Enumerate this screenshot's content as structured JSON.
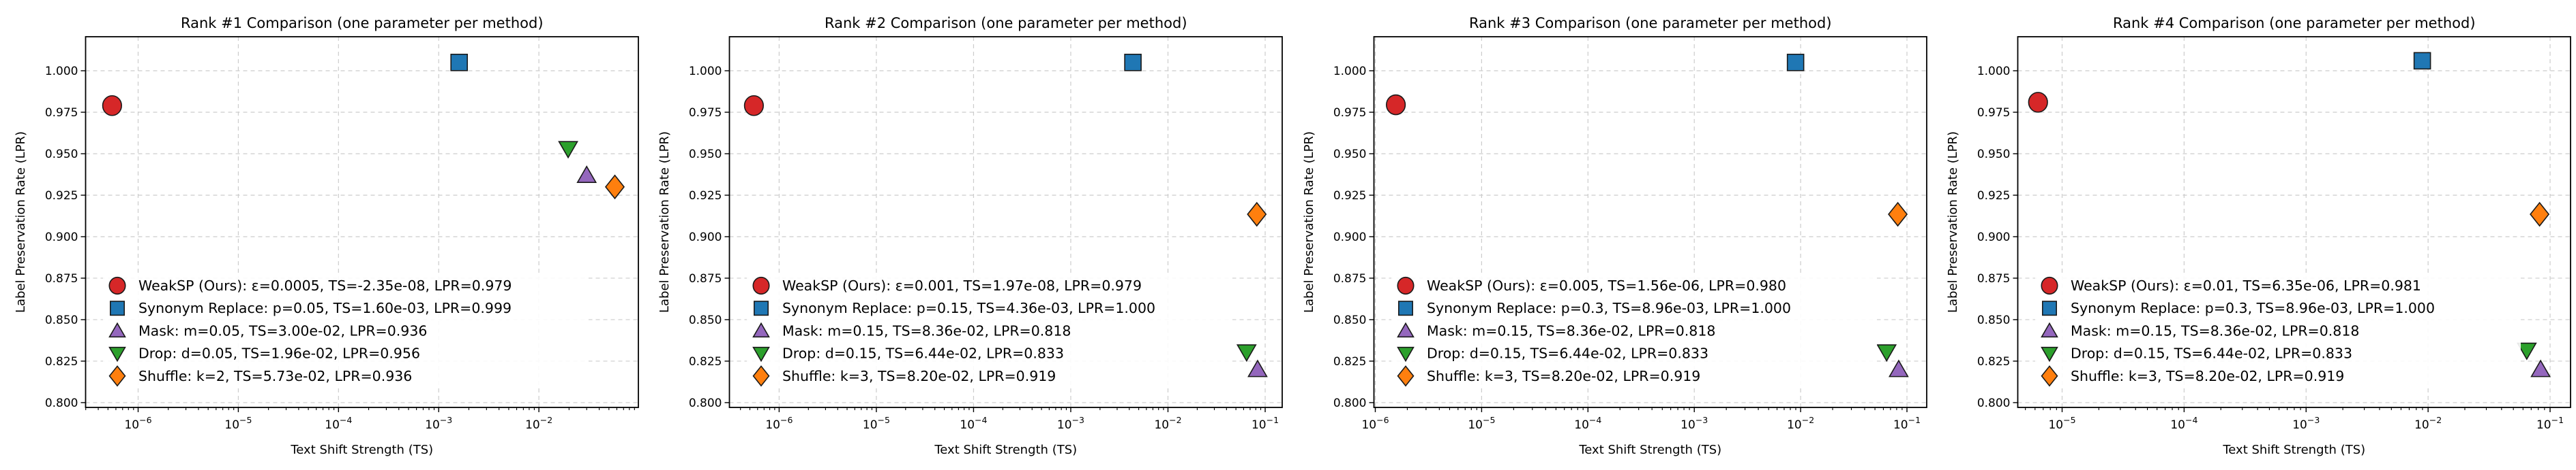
{
  "figure": {
    "background": "#ffffff",
    "grid_color": "#cccccc",
    "spine_color": "#000000",
    "marker_edge_color": "#1a1a1a",
    "legend_bg": "#ffffff"
  },
  "chart_data": [
    {
      "type": "scatter",
      "title": "Rank #1 Comparison (one parameter per method)",
      "xlabel": "Text Shift Strength (TS)",
      "ylabel": "Label Preservation Rate (LPR)",
      "xscale": "log",
      "xlim": [
        2.99e-07,
        0.0984
      ],
      "xtick_exponents": [
        -6,
        -5,
        -4,
        -3,
        -2
      ],
      "ylim": [
        0.7971,
        1.0205
      ],
      "yticks": [
        0.8,
        0.825,
        0.85,
        0.875,
        0.9,
        0.925,
        0.95,
        0.975,
        1.0
      ],
      "grid": true,
      "legend_position": "lower-left",
      "series": [
        {
          "name": "WeakSP (Ours)",
          "slug": "weaksp",
          "marker": "circle",
          "color": "#d62728",
          "legend_label": "WeakSP (Ours): ε=0.0005, TS=-2.35e-08, LPR=0.979",
          "param": "ε=0.0005",
          "ts": "-2.35e-08",
          "lpr": 0.979,
          "plot": {
            "x": 5.5e-07,
            "y": 0.979
          }
        },
        {
          "name": "Synonym Replace",
          "slug": "synonym-replace",
          "marker": "square",
          "color": "#1f77b4",
          "legend_label": "Synonym Replace: p=0.05, TS=1.60e-03, LPR=0.999",
          "param": "p=0.05",
          "ts": "1.60e-03",
          "lpr": 0.999,
          "plot": {
            "x": 0.0016,
            "y": 1.005
          }
        },
        {
          "name": "Mask",
          "slug": "mask",
          "marker": "triangle-up",
          "color": "#9467bd",
          "legend_label": "Mask: m=0.05, TS=3.00e-02, LPR=0.936",
          "param": "m=0.05",
          "ts": "3.00e-02",
          "lpr": 0.936,
          "plot": {
            "x": 0.03,
            "y": 0.937
          }
        },
        {
          "name": "Drop",
          "slug": "drop",
          "marker": "triangle-down",
          "color": "#2ca02c",
          "legend_label": "Drop: d=0.05, TS=1.96e-02, LPR=0.956",
          "param": "d=0.05",
          "ts": "1.96e-02",
          "lpr": 0.956,
          "plot": {
            "x": 0.0196,
            "y": 0.953
          }
        },
        {
          "name": "Shuffle",
          "slug": "shuffle",
          "marker": "diamond",
          "color": "#ff7f0e",
          "legend_label": "Shuffle: k=2, TS=5.73e-02, LPR=0.936",
          "param": "k=2",
          "ts": "5.73e-02",
          "lpr": 0.936,
          "plot": {
            "x": 0.0573,
            "y": 0.93
          }
        }
      ]
    },
    {
      "type": "scatter",
      "title": "Rank #2 Comparison (one parameter per method)",
      "xlabel": "Text Shift Strength (TS)",
      "ylabel": "Label Preservation Rate (LPR)",
      "xscale": "log",
      "xlim": [
        3.08e-07,
        0.1497
      ],
      "xtick_exponents": [
        -6,
        -5,
        -4,
        -3,
        -2,
        -1
      ],
      "ylim": [
        0.7971,
        1.0205
      ],
      "yticks": [
        0.8,
        0.825,
        0.85,
        0.875,
        0.9,
        0.925,
        0.95,
        0.975,
        1.0
      ],
      "grid": true,
      "legend_position": "lower-left",
      "series": [
        {
          "name": "WeakSP (Ours)",
          "slug": "weaksp",
          "marker": "circle",
          "color": "#d62728",
          "legend_label": "WeakSP (Ours): ε=0.001, TS=1.97e-08, LPR=0.979",
          "param": "ε=0.001",
          "ts": "1.97e-08",
          "lpr": 0.979,
          "plot": {
            "x": 5.5e-07,
            "y": 0.979
          }
        },
        {
          "name": "Synonym Replace",
          "slug": "synonym-replace",
          "marker": "square",
          "color": "#1f77b4",
          "legend_label": "Synonym Replace: p=0.15, TS=4.36e-03, LPR=1.000",
          "param": "p=0.15",
          "ts": "4.36e-03",
          "lpr": 1.0,
          "plot": {
            "x": 0.00436,
            "y": 1.005
          }
        },
        {
          "name": "Mask",
          "slug": "mask",
          "marker": "triangle-up",
          "color": "#9467bd",
          "legend_label": "Mask: m=0.15, TS=8.36e-02, LPR=0.818",
          "param": "m=0.15",
          "ts": "8.36e-02",
          "lpr": 0.818,
          "plot": {
            "x": 0.0836,
            "y": 0.82
          }
        },
        {
          "name": "Drop",
          "slug": "drop",
          "marker": "triangle-down",
          "color": "#2ca02c",
          "legend_label": "Drop: d=0.15, TS=6.44e-02, LPR=0.833",
          "param": "d=0.15",
          "ts": "6.44e-02",
          "lpr": 0.833,
          "plot": {
            "x": 0.0644,
            "y": 0.8305
          }
        },
        {
          "name": "Shuffle",
          "slug": "shuffle",
          "marker": "diamond",
          "color": "#ff7f0e",
          "legend_label": "Shuffle: k=3, TS=8.20e-02, LPR=0.919",
          "param": "k=3",
          "ts": "8.20e-02",
          "lpr": 0.919,
          "plot": {
            "x": 0.082,
            "y": 0.9135
          }
        }
      ]
    },
    {
      "type": "scatter",
      "title": "Rank #3 Comparison (one parameter per method)",
      "xlabel": "Text Shift Strength (TS)",
      "ylabel": "Label Preservation Rate (LPR)",
      "xscale": "log",
      "xlim": [
        9.71e-07,
        0.1534
      ],
      "xtick_exponents": [
        -6,
        -5,
        -4,
        -3,
        -2,
        -1
      ],
      "ylim": [
        0.7971,
        1.0205
      ],
      "yticks": [
        0.8,
        0.825,
        0.85,
        0.875,
        0.9,
        0.925,
        0.95,
        0.975,
        1.0
      ],
      "grid": true,
      "legend_position": "lower-left",
      "series": [
        {
          "name": "WeakSP (Ours)",
          "slug": "weaksp",
          "marker": "circle",
          "color": "#d62728",
          "legend_label": "WeakSP (Ours): ε=0.005, TS=1.56e-06, LPR=0.980",
          "param": "ε=0.005",
          "ts": "1.56e-06",
          "lpr": 0.98,
          "plot": {
            "x": 1.56e-06,
            "y": 0.9795
          }
        },
        {
          "name": "Synonym Replace",
          "slug": "synonym-replace",
          "marker": "square",
          "color": "#1f77b4",
          "legend_label": "Synonym Replace: p=0.3, TS=8.96e-03, LPR=1.000",
          "param": "p=0.3",
          "ts": "8.96e-03",
          "lpr": 1.0,
          "plot": {
            "x": 0.00896,
            "y": 1.005
          }
        },
        {
          "name": "Mask",
          "slug": "mask",
          "marker": "triangle-up",
          "color": "#9467bd",
          "legend_label": "Mask: m=0.15, TS=8.36e-02, LPR=0.818",
          "param": "m=0.15",
          "ts": "8.36e-02",
          "lpr": 0.818,
          "plot": {
            "x": 0.0836,
            "y": 0.82
          }
        },
        {
          "name": "Drop",
          "slug": "drop",
          "marker": "triangle-down",
          "color": "#2ca02c",
          "legend_label": "Drop: d=0.15, TS=6.44e-02, LPR=0.833",
          "param": "d=0.15",
          "ts": "6.44e-02",
          "lpr": 0.833,
          "plot": {
            "x": 0.0644,
            "y": 0.8305
          }
        },
        {
          "name": "Shuffle",
          "slug": "shuffle",
          "marker": "diamond",
          "color": "#ff7f0e",
          "legend_label": "Shuffle: k=3, TS=8.20e-02, LPR=0.919",
          "param": "k=3",
          "ts": "8.20e-02",
          "lpr": 0.919,
          "plot": {
            "x": 0.082,
            "y": 0.9135
          }
        }
      ]
    },
    {
      "type": "scatter",
      "title": "Rank #4 Comparison (one parameter per method)",
      "xlabel": "Text Shift Strength (TS)",
      "ylabel": "Label Preservation Rate (LPR)",
      "xscale": "log",
      "xlim": [
        4.33e-06,
        0.1471
      ],
      "xtick_exponents": [
        -5,
        -4,
        -3,
        -2,
        -1
      ],
      "ylim": [
        0.7971,
        1.0205
      ],
      "yticks": [
        0.8,
        0.825,
        0.85,
        0.875,
        0.9,
        0.925,
        0.95,
        0.975,
        1.0
      ],
      "grid": true,
      "legend_position": "lower-left",
      "series": [
        {
          "name": "WeakSP (Ours)",
          "slug": "weaksp",
          "marker": "circle",
          "color": "#d62728",
          "legend_label": "WeakSP (Ours): ε=0.01, TS=6.35e-06, LPR=0.981",
          "param": "ε=0.01",
          "ts": "6.35e-06",
          "lpr": 0.981,
          "plot": {
            "x": 6.35e-06,
            "y": 0.981
          }
        },
        {
          "name": "Synonym Replace",
          "slug": "synonym-replace",
          "marker": "square",
          "color": "#1f77b4",
          "legend_label": "Synonym Replace: p=0.3, TS=8.96e-03, LPR=1.000",
          "param": "p=0.3",
          "ts": "8.96e-03",
          "lpr": 1.0,
          "plot": {
            "x": 0.00896,
            "y": 1.006
          }
        },
        {
          "name": "Mask",
          "slug": "mask",
          "marker": "triangle-up",
          "color": "#9467bd",
          "legend_label": "Mask: m=0.15, TS=8.36e-02, LPR=0.818",
          "param": "m=0.15",
          "ts": "8.36e-02",
          "lpr": 0.818,
          "plot": {
            "x": 0.0836,
            "y": 0.82
          }
        },
        {
          "name": "Drop",
          "slug": "drop",
          "marker": "triangle-down",
          "color": "#2ca02c",
          "legend_label": "Drop: d=0.15, TS=6.44e-02, LPR=0.833",
          "param": "d=0.15",
          "ts": "6.44e-02",
          "lpr": 0.833,
          "plot": {
            "x": 0.0644,
            "y": 0.8315
          }
        },
        {
          "name": "Shuffle",
          "slug": "shuffle",
          "marker": "diamond",
          "color": "#ff7f0e",
          "legend_label": "Shuffle: k=3, TS=8.20e-02, LPR=0.919",
          "param": "k=3",
          "ts": "8.20e-02",
          "lpr": 0.919,
          "plot": {
            "x": 0.082,
            "y": 0.9135
          }
        }
      ]
    }
  ]
}
